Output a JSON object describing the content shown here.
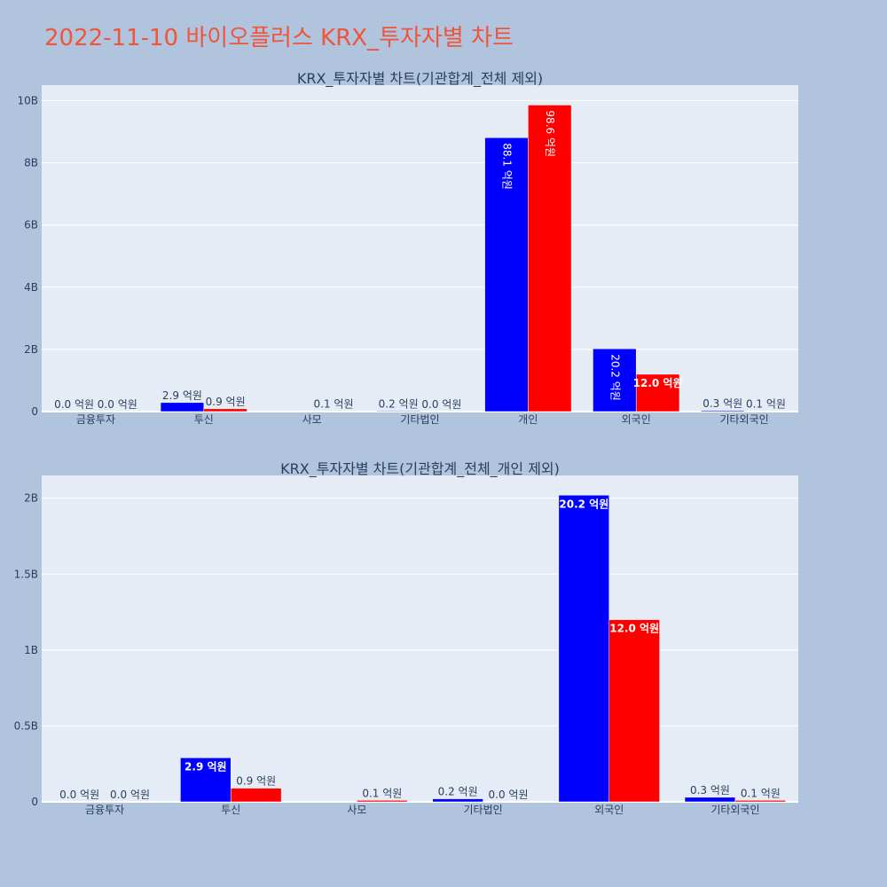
{
  "page": {
    "title": "2022-11-10 바이오플러스 KRX_투자자별 차트"
  },
  "colors": {
    "background": "#b0c4de",
    "plot_bg": "#e5ecf6",
    "title": "#ef553b",
    "buy": "#0000ff",
    "sell": "#ff0000"
  },
  "chart_data": [
    {
      "type": "bar",
      "title": "KRX_투자자별 차트(기관합계_전체 제외)",
      "categories": [
        "금융투자",
        "투신",
        "사모",
        "기타법인",
        "개인",
        "외국인",
        "기타외국인"
      ],
      "series": [
        {
          "values": [
            0.0,
            290000000,
            0,
            20000000,
            8810000000,
            2020000000,
            30000000
          ],
          "labels": [
            "0.0 억원",
            "2.9 억원",
            "",
            "0.2 억원",
            "88.1 억원",
            "20.2 억원",
            "0.3 억원"
          ],
          "color": "#0000ff"
        },
        {
          "values": [
            0.0,
            90000000,
            10000000,
            0.0,
            9860000000,
            1200000000,
            10000000
          ],
          "labels": [
            "0.0 억원",
            "0.9 억원",
            "0.1 억원",
            "0.0 억원",
            "98.6 억원",
            "12.0 억원",
            "0.1 억원"
          ],
          "color": "#ff0000"
        }
      ],
      "ylim": [
        0,
        10500000000
      ],
      "yticks": [
        0,
        2000000000,
        4000000000,
        6000000000,
        8000000000,
        10000000000
      ],
      "ytick_labels": [
        "0",
        "2B",
        "4B",
        "6B",
        "8B",
        "10B"
      ],
      "grid": true
    },
    {
      "type": "bar",
      "title": "KRX_투자자별 차트(기관합계_전체_개인 제외)",
      "categories": [
        "금융투자",
        "투신",
        "사모",
        "기타법인",
        "외국인",
        "기타외국인"
      ],
      "series": [
        {
          "values": [
            0.0,
            290000000,
            0,
            20000000,
            2020000000,
            30000000
          ],
          "labels": [
            "0.0 억원",
            "2.9 억원",
            "",
            "0.2 억원",
            "20.2 억원",
            "0.3 억원"
          ],
          "color": "#0000ff"
        },
        {
          "values": [
            0.0,
            90000000,
            10000000,
            0.0,
            1200000000,
            10000000
          ],
          "labels": [
            "0.0 억원",
            "0.9 억원",
            "0.1 억원",
            "0.0 억원",
            "12.0 억원",
            "0.1 억원"
          ],
          "color": "#ff0000"
        }
      ],
      "ylim": [
        0,
        2150000000
      ],
      "yticks": [
        0,
        500000000,
        1000000000,
        1500000000,
        2000000000
      ],
      "ytick_labels": [
        "0",
        "0.5B",
        "1B",
        "1.5B",
        "2B"
      ],
      "grid": true
    }
  ]
}
